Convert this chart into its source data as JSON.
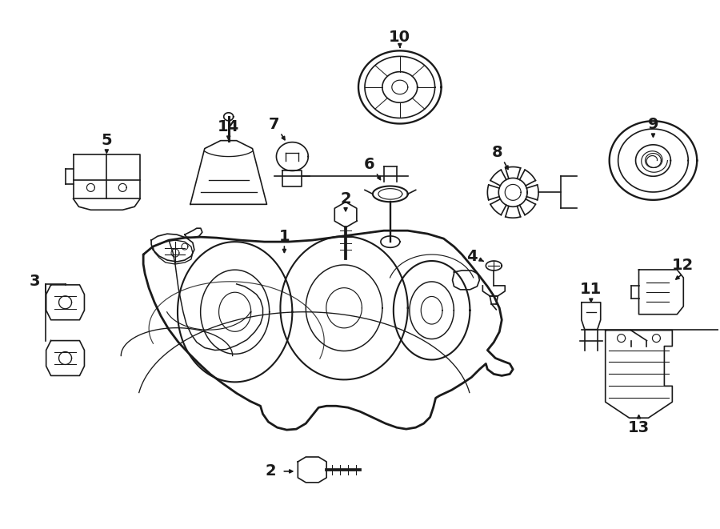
{
  "bg_color": "#ffffff",
  "line_color": "#1a1a1a",
  "lw": 1.2,
  "fig_width": 9.0,
  "fig_height": 6.61,
  "dpi": 100,
  "xlim": [
    0,
    900
  ],
  "ylim": [
    0,
    661
  ]
}
